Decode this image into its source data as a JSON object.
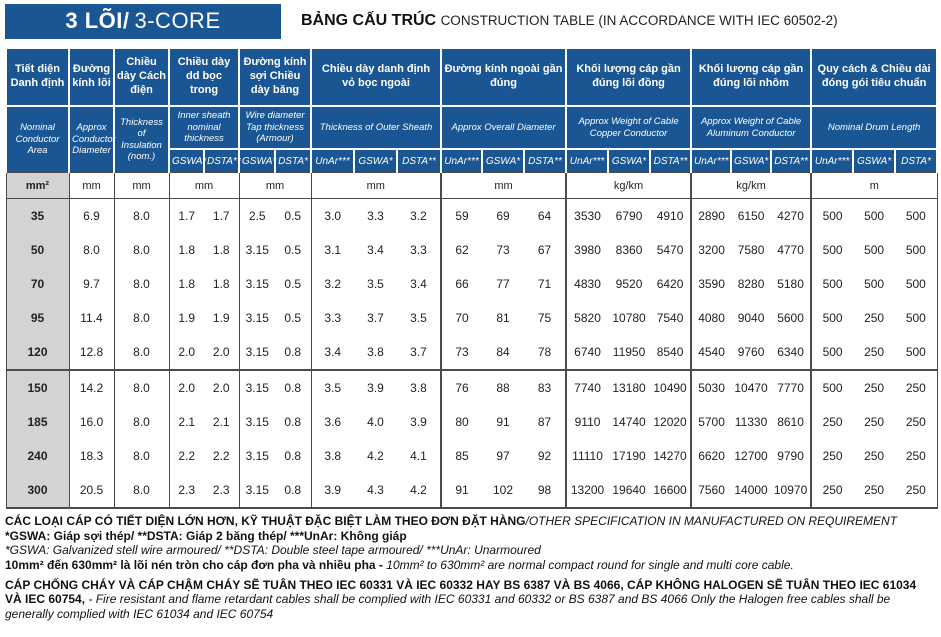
{
  "title": {
    "badge_bold": "3 LÕI/",
    "badge_light": "3-CORE",
    "heading_vi": "BẢNG CẤU TRÚC",
    "heading_en": " CONSTRUCTION TABLE (IN ACCORDANCE WITH IEC 60502-2)"
  },
  "colors": {
    "header_blue": "#1a5693",
    "label_gray": "#d3d3d3",
    "border_dark": "#4d4b47"
  },
  "header": {
    "groups": [
      {
        "vi": "Tiết diện Danh định",
        "en": "Nominal Conductor Area",
        "subs": []
      },
      {
        "vi": "Đường kính lõi",
        "en": "Approx Conductor Diameter",
        "subs": []
      },
      {
        "vi": "Chiều dày Cách điện",
        "en": "Thickness of Insulation (nom.)",
        "subs": []
      },
      {
        "vi": "Chiều dày dd bọc trong",
        "en": "Inner sheath nominal thickness",
        "subs": [
          "GSWA*",
          "DSTA**"
        ]
      },
      {
        "vi": "Đường kính sợi Chiều dày băng",
        "en": "Wire diameter Tap thickness (Armour)",
        "subs": [
          "GSWA*",
          "DSTA*"
        ]
      },
      {
        "vi": "Chiều dày danh định vỏ bọc ngoài",
        "en": "Thickness of Outer Sheath",
        "subs": [
          "UnAr***",
          "GSWA*",
          "DSTA**"
        ]
      },
      {
        "vi": "Đường kính ngoài gần đúng",
        "en": "Approx Overall Diameter",
        "subs": [
          "UnAr***",
          "GSWA*",
          "DSTA**"
        ]
      },
      {
        "vi": "Khối lượng cáp gần đúng lõi đồng",
        "en": "Approx Weight of Cable Copper Conductor",
        "subs": [
          "UnAr***",
          "GSWA*",
          "DSTA**"
        ]
      },
      {
        "vi": "Khối lượng cáp gần đúng lõi nhôm",
        "en": "Approx Weight of Cable Aluminum Conductor",
        "subs": [
          "UnAr***",
          "GSWA*",
          "DSTA**"
        ]
      },
      {
        "vi": "Quy cách & Chiều dài đóng gói tiêu chuẩn",
        "en": "Nominal Drum Length",
        "subs": [
          "UnAr***",
          "GSWA*",
          "DSTA*"
        ]
      }
    ],
    "units": [
      {
        "label": "mm²"
      },
      {
        "label": "mm"
      },
      {
        "label": "mm"
      },
      {
        "label": "mm"
      },
      {
        "label": "mm"
      },
      {
        "label": "mm"
      },
      {
        "label": "mm"
      },
      {
        "label": "kg/km"
      },
      {
        "label": "kg/km"
      },
      {
        "label": "m"
      }
    ]
  },
  "rows": [
    {
      "size": "35",
      "values": [
        "6.9",
        "8.0",
        "1.7",
        "1.7",
        "2.5",
        "0.5",
        "3.0",
        "3.3",
        "3.2",
        "59",
        "69",
        "64",
        "3530",
        "6790",
        "4910",
        "2890",
        "6150",
        "4270",
        "500",
        "500",
        "500"
      ]
    },
    {
      "size": "50",
      "values": [
        "8.0",
        "8.0",
        "1.8",
        "1.8",
        "3.15",
        "0.5",
        "3.1",
        "3.4",
        "3.3",
        "62",
        "73",
        "67",
        "3980",
        "8360",
        "5470",
        "3200",
        "7580",
        "4770",
        "500",
        "500",
        "500"
      ]
    },
    {
      "size": "70",
      "values": [
        "9.7",
        "8.0",
        "1.8",
        "1.8",
        "3.15",
        "0.5",
        "3.2",
        "3.5",
        "3.4",
        "66",
        "77",
        "71",
        "4830",
        "9520",
        "6420",
        "3590",
        "8280",
        "5180",
        "500",
        "500",
        "500"
      ]
    },
    {
      "size": "95",
      "values": [
        "11.4",
        "8.0",
        "1.9",
        "1.9",
        "3.15",
        "0.5",
        "3.3",
        "3.7",
        "3.5",
        "70",
        "81",
        "75",
        "5820",
        "10780",
        "7540",
        "4080",
        "9040",
        "5600",
        "500",
        "250",
        "500"
      ]
    },
    {
      "size": "120",
      "values": [
        "12.8",
        "8.0",
        "2.0",
        "2.0",
        "3.15",
        "0.8",
        "3.4",
        "3.8",
        "3.7",
        "73",
        "84",
        "78",
        "6740",
        "11950",
        "8540",
        "4540",
        "9760",
        "6340",
        "500",
        "250",
        "500"
      ]
    },
    {
      "size": "150",
      "values": [
        "14.2",
        "8.0",
        "2.0",
        "2.0",
        "3.15",
        "0.8",
        "3.5",
        "3.9",
        "3.8",
        "76",
        "88",
        "83",
        "7740",
        "13180",
        "10490",
        "5030",
        "10470",
        "7770",
        "500",
        "250",
        "250"
      ]
    },
    {
      "size": "185",
      "values": [
        "16.0",
        "8.0",
        "2.1",
        "2.1",
        "3.15",
        "0.8",
        "3.6",
        "4.0",
        "3.9",
        "80",
        "91",
        "87",
        "9110",
        "14740",
        "12020",
        "5700",
        "11330",
        "8610",
        "250",
        "250",
        "250"
      ]
    },
    {
      "size": "240",
      "values": [
        "18.3",
        "8.0",
        "2.2",
        "2.2",
        "3.15",
        "0.8",
        "3.8",
        "4.2",
        "4.1",
        "85",
        "97",
        "92",
        "11110",
        "17190",
        "14270",
        "6620",
        "12700",
        "9790",
        "250",
        "250",
        "250"
      ]
    },
    {
      "size": "300",
      "values": [
        "20.5",
        "8.0",
        "2.3",
        "2.3",
        "3.15",
        "0.8",
        "3.9",
        "4.3",
        "4.2",
        "91",
        "102",
        "98",
        "13200",
        "19640",
        "16600",
        "7560",
        "14000",
        "10970",
        "250",
        "250",
        "250"
      ]
    }
  ],
  "notes": {
    "line1_bold": "CÁC LOẠI CÁP CÓ TIẾT DIỆN LỚN HƠN, KỸ THUẬT ĐẶC BIỆT LÀM THEO ĐƠN ĐẶT HÀNG",
    "line1_italic": "/OTHER SPECIFICATION IN MANUFACTURED ON REQUIREMENT",
    "line2_bold": "*GSWA: Giáp sợi thép/ **DSTA: Giáp 2 băng thép/ ***UnAr: Không giáp",
    "line3_italic": "*GSWA: Galvanized stell wire armoured/ **DSTA: Double steel tape armoured/ ***UnAr: Unarmoured",
    "line4_bold": "10mm² đến 630mm² là lõi nén tròn cho cáp đơn pha và nhiều pha - ",
    "line4_italic": "10mm² to 630mm² are normal compact round for single and multi core cable.",
    "line5_bold": "CÁP CHỐNG CHÁY VÀ CÁP CHẬM CHÁY SẼ TUÂN THEO IEC 60331 VÀ IEC 60332 HAY BS 6387 VÀ BS 4066, CÁP KHÔNG HALOGEN SẼ TUÂN THEO IEC 61034 VÀ IEC 60754, ",
    "line5_italic": " - Fire resistant and flame retardant cables shall be complied with IEC 60331 and 60332 or BS 6387 and BS 4066 Only the Halogen free cables shall be generally complied with IEC 61034 and IEC 60754"
  }
}
